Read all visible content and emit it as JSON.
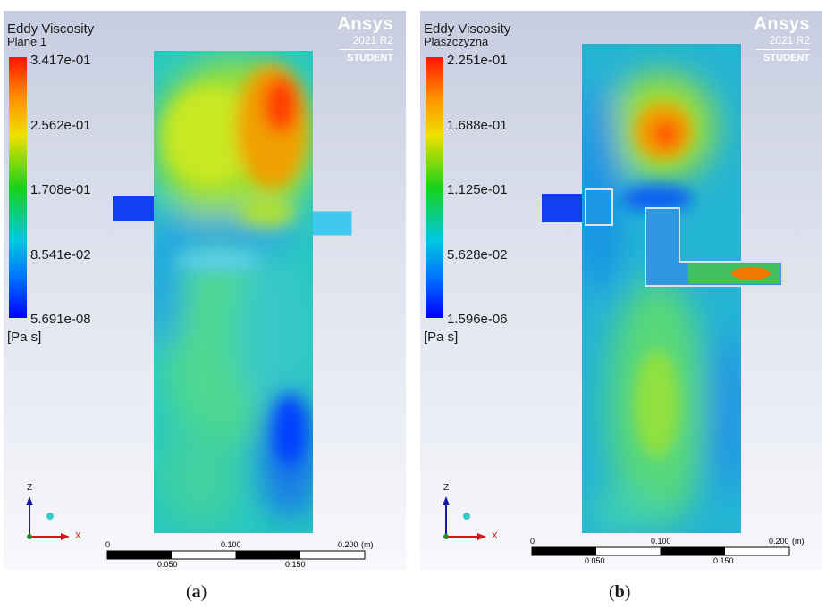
{
  "panels": [
    {
      "legend_title": "Eddy Viscosity",
      "legend_subtitle": "Plane 1",
      "legend_ticks": [
        "3.417e-01",
        "2.562e-01",
        "1.708e-01",
        "8.541e-02",
        "5.691e-08"
      ],
      "units": "[Pa s]",
      "scale_top": [
        "0",
        "0.100",
        "0.200",
        "(m)"
      ],
      "scale_bottom": [
        "0.050",
        "0.150"
      ],
      "caption_letter": "a"
    },
    {
      "legend_title": "Eddy Viscosity",
      "legend_subtitle": "Plaszczyzna",
      "legend_ticks": [
        "2.251e-01",
        "1.688e-01",
        "1.125e-01",
        "5.628e-02",
        "1.596e-06"
      ],
      "units": "[Pa s]",
      "scale_top": [
        "0",
        "0.100",
        "0.200",
        "(m)"
      ],
      "scale_bottom": [
        "0.050",
        "0.150"
      ],
      "caption_letter": "b"
    }
  ],
  "logo": {
    "name": "Ansys",
    "version": "2021 R2",
    "edition": "STUDENT"
  },
  "axes": {
    "z": "Z",
    "x": "X"
  },
  "colors": {
    "high": "#ff1400",
    "mid": "#19d219",
    "low": "#0000ff",
    "background_top": "#c7cde0"
  }
}
